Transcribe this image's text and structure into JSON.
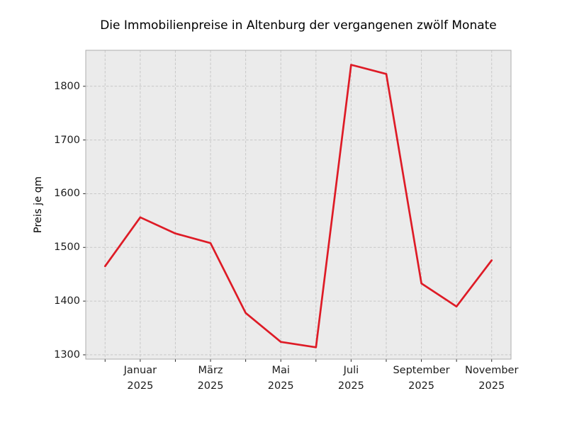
{
  "chart_data": {
    "type": "line",
    "title": "Die Immobilienpreise in Altenburg der vergangenen zwölf Monate",
    "ylabel": "Preis je qm",
    "x": [
      0,
      1,
      2,
      3,
      4,
      5,
      6,
      7,
      8,
      9,
      10,
      11
    ],
    "series": [
      {
        "name": "Preis je qm",
        "values": [
          1465,
          1556,
          1526,
          1508,
          1378,
          1324,
          1314,
          1840,
          1823,
          1433,
          1390,
          1476
        ]
      }
    ],
    "xticks": [
      {
        "index": 1,
        "month": "Januar",
        "year": "2025"
      },
      {
        "index": 3,
        "month": "März",
        "year": "2025"
      },
      {
        "index": 5,
        "month": "Mai",
        "year": "2025"
      },
      {
        "index": 7,
        "month": "Juli",
        "year": "2025"
      },
      {
        "index": 9,
        "month": "September",
        "year": "2025"
      },
      {
        "index": 11,
        "month": "November",
        "year": "2025"
      }
    ],
    "yticks": [
      1300,
      1400,
      1500,
      1600,
      1700,
      1800
    ],
    "xlim": [
      -0.55,
      11.55
    ],
    "ylim": [
      1292,
      1867
    ],
    "grid": {
      "on": true,
      "style": "dashed",
      "color": "#c8c8c8"
    },
    "legend": "none",
    "colors": {
      "line": "#de1b26",
      "plot_background": "#ebebeb",
      "figure_background": "#ffffff",
      "spine": "#adadad",
      "tick_mark": "#262626",
      "tick_text": "#1c1c1c"
    },
    "line_width": 2.7
  }
}
